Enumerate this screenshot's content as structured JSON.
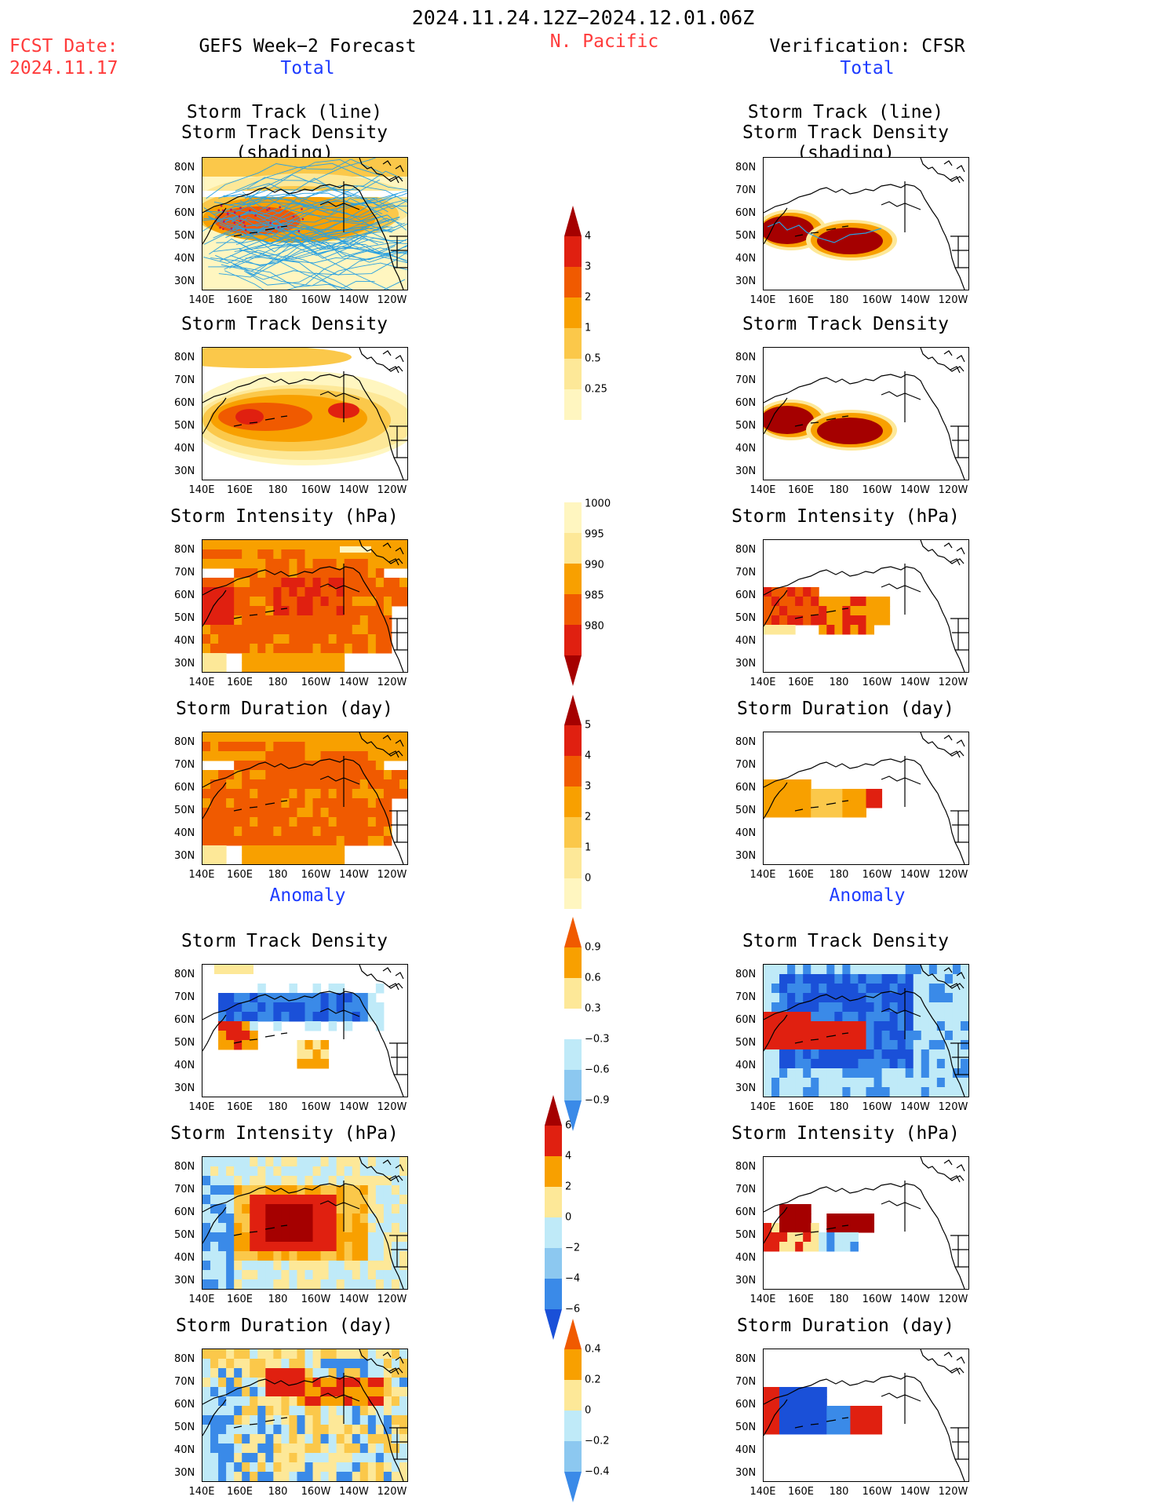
{
  "header": {
    "date_range": "2024.11.24.12Z−2024.12.01.06Z",
    "fcst_label": "FCST Date:",
    "fcst_date": "2024.11.17",
    "left_title": "GEFS Week−2 Forecast",
    "region": "N. Pacific",
    "right_title": "Verification: CFSR",
    "total_label": "Total",
    "anomaly_label": "Anomaly"
  },
  "titles": {
    "track_line": "Storm Track (line)",
    "track_density_shading": "Storm Track Density (shading)",
    "track_density": "Storm Track Density",
    "intensity": "Storm Intensity (hPa)",
    "duration": "Storm Duration (day)"
  },
  "axes": {
    "lat": [
      "80N",
      "70N",
      "60N",
      "50N",
      "40N",
      "30N"
    ],
    "lon": [
      "140E",
      "160E",
      "180",
      "160W",
      "140W",
      "120W"
    ]
  },
  "colorbars": {
    "density_total": [
      "4",
      "3",
      "2",
      "1",
      "0.5",
      "0.25"
    ],
    "intensity_total": [
      "1000",
      "995",
      "990",
      "985",
      "980"
    ],
    "duration_total": [
      "5",
      "4",
      "3",
      "2",
      "1",
      "0"
    ],
    "density_anom": [
      "0.9",
      "0.6",
      "0.3",
      "−0.3",
      "−0.6",
      "−0.9"
    ],
    "intensity_anom": [
      "6",
      "4",
      "2",
      "0",
      "−2",
      "−4",
      "−6"
    ],
    "duration_anom": [
      "0.4",
      "0.2",
      "0",
      "−0.2",
      "−0.4"
    ]
  },
  "colors": {
    "dark_red": "#a50000",
    "red": "#e02010",
    "orange_red": "#f05a00",
    "orange": "#f8a000",
    "light_orange": "#fbc84a",
    "yellow": "#fde898",
    "pale_yellow": "#fff6c0",
    "pale_blue": "#bfeaf8",
    "light_blue": "#8cc8f0",
    "blue": "#3a8ae8",
    "dark_blue": "#1a50d8",
    "track_line": "#2aa0e0"
  }
}
